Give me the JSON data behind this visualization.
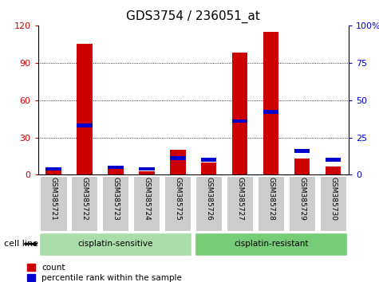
{
  "title": "GDS3754 / 236051_at",
  "samples": [
    "GSM385721",
    "GSM385722",
    "GSM385723",
    "GSM385724",
    "GSM385725",
    "GSM385726",
    "GSM385727",
    "GSM385728",
    "GSM385729",
    "GSM385730"
  ],
  "count_values": [
    5,
    105,
    6,
    3,
    20,
    10,
    98,
    115,
    13,
    7
  ],
  "percentile_values": [
    4,
    33,
    5,
    4,
    11,
    10,
    36,
    42,
    16,
    10
  ],
  "count_color": "#cc0000",
  "percentile_color": "#0000cc",
  "left_ylim": [
    0,
    120
  ],
  "right_ylim": [
    0,
    100
  ],
  "left_yticks": [
    0,
    30,
    60,
    90,
    120
  ],
  "right_yticks": [
    0,
    25,
    50,
    75,
    100
  ],
  "right_yticklabels": [
    "0",
    "25",
    "50",
    "75",
    "100%"
  ],
  "groups": [
    {
      "label": "cisplatin-sensitive",
      "start": 0,
      "end": 5,
      "color": "#aaddaa"
    },
    {
      "label": "cisplatin-resistant",
      "start": 5,
      "end": 10,
      "color": "#77cc77"
    }
  ],
  "cell_line_label": "cell line",
  "legend_count": "count",
  "legend_percentile": "percentile rank within the sample",
  "bar_width": 0.5,
  "count_color_legend": "#cc0000",
  "percentile_color_legend": "#0000cc",
  "background_color": "#ffffff",
  "tick_bg": "#cccccc",
  "title_fontsize": 11,
  "tick_fontsize": 8,
  "label_fontsize": 8
}
